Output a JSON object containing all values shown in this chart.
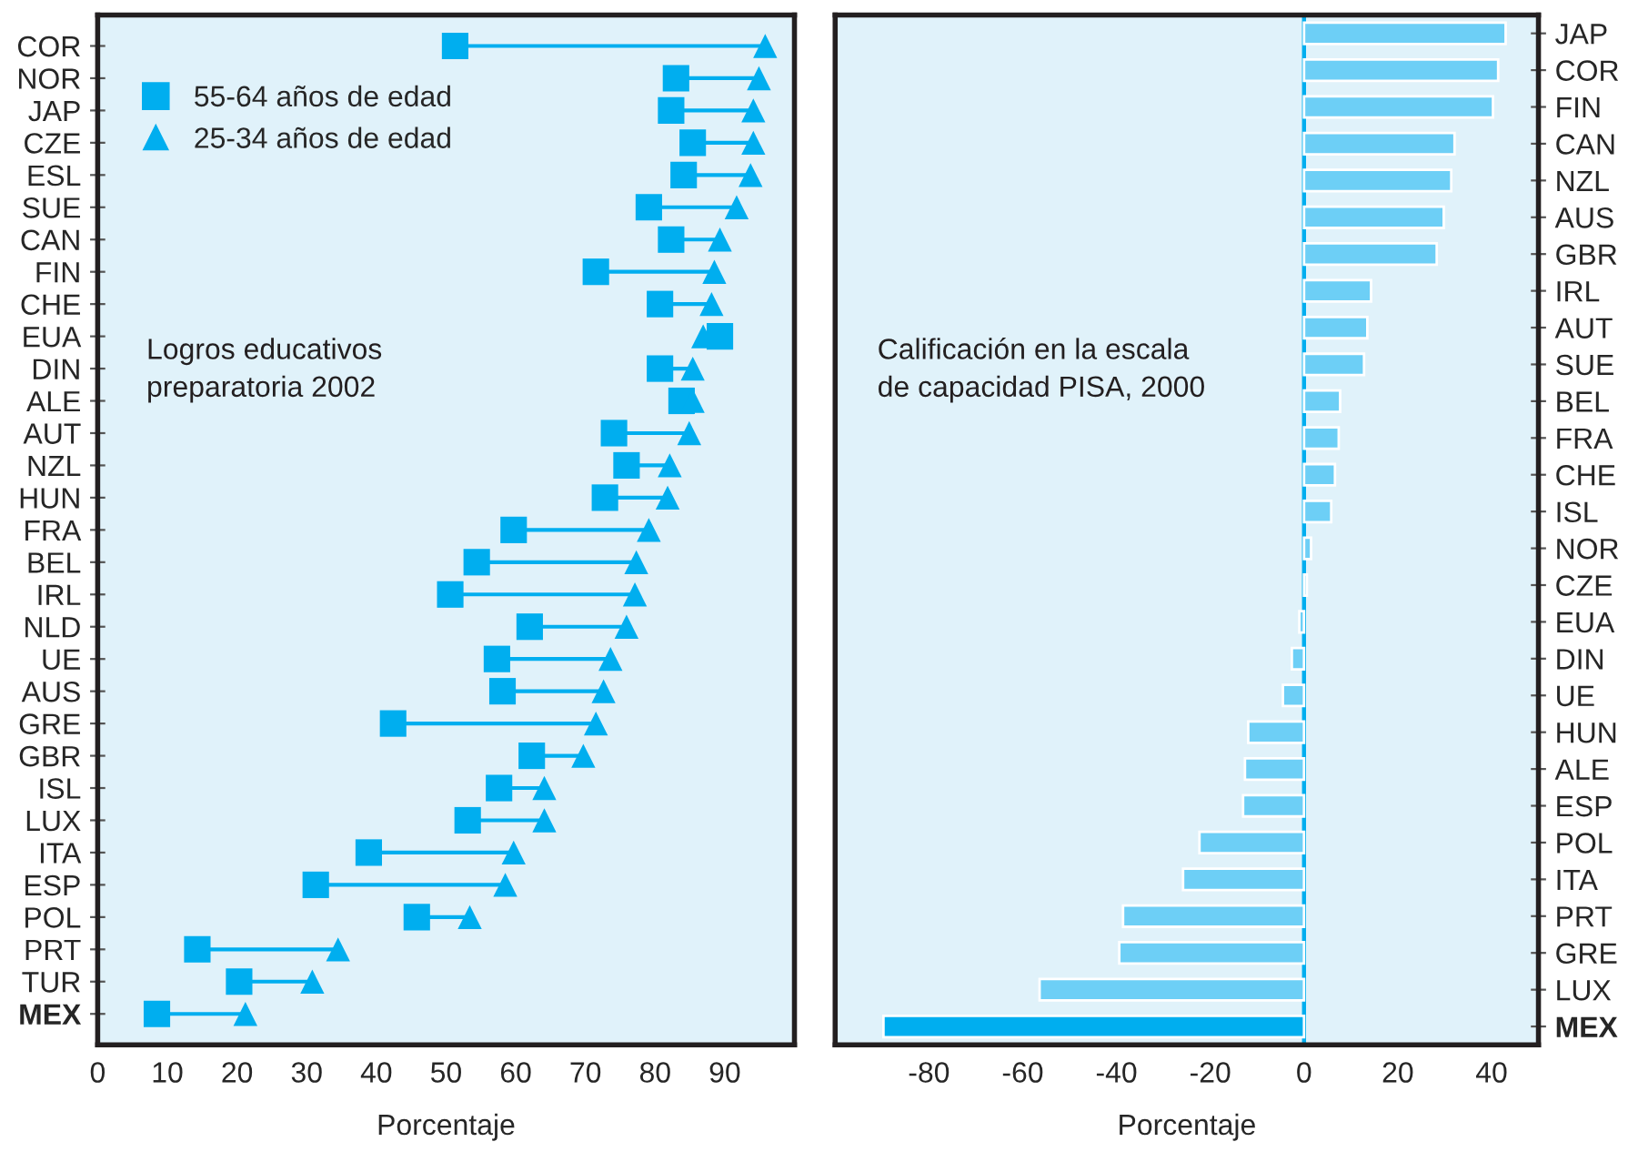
{
  "chart_data": [
    {
      "type": "scatter",
      "orientation": "horizontal",
      "legend": "top left",
      "grid": false,
      "categories": [
        "COR",
        "NOR",
        "JAP",
        "CZE",
        "ESL",
        "SUE",
        "CAN",
        "FIN",
        "CHE",
        "EUA",
        "DIN",
        "ALE",
        "AUT",
        "NZL",
        "HUN",
        "FRA",
        "BEL",
        "IRL",
        "NLD",
        "UE",
        "AUS",
        "GRE",
        "GBR",
        "ISL",
        "LUX",
        "ITA",
        "ESP",
        "POL",
        "PRT",
        "TUR",
        "MEX"
      ],
      "series": [
        {
          "name": "55-64 años de edad",
          "color": "#00aeef",
          "marker": "square",
          "values": [
            51.3,
            83,
            82.3,
            85.4,
            84.1,
            79.1,
            82.3,
            71.5,
            80.7,
            89.3,
            80.7,
            83.8,
            74.1,
            75.9,
            72.8,
            59.7,
            54.4,
            50.6,
            62,
            57.3,
            58.1,
            42.4,
            62.3,
            57.6,
            53.1,
            38.9,
            31.3,
            45.8,
            14.3,
            20.3,
            8.5
          ]
        },
        {
          "name": "25-34 años de edad",
          "color": "#00aeef",
          "marker": "triangle",
          "values": [
            95.8,
            94.9,
            94.1,
            94.1,
            93.7,
            91.7,
            89.3,
            88.5,
            88.1,
            86.9,
            85.4,
            85.4,
            84.9,
            82.1,
            81.8,
            79.1,
            77.3,
            77.1,
            75.9,
            73.6,
            72.6,
            71.5,
            69.7,
            64.1,
            64.1,
            59.7,
            58.5,
            53.4,
            34.5,
            30.8,
            21.2
          ]
        }
      ],
      "xlabel": "Porcentaje",
      "xlim": [
        0,
        100
      ],
      "xticks": [
        0,
        10,
        20,
        30,
        40,
        50,
        60,
        70,
        80,
        90
      ],
      "annotations": [
        "Logros educativos\npreparatoria 2002"
      ]
    },
    {
      "type": "bar",
      "orientation": "horizontal",
      "grid": false,
      "categories": [
        "JAP",
        "COR",
        "FIN",
        "CAN",
        "NZL",
        "AUS",
        "GBR",
        "IRL",
        "AUT",
        "SUE",
        "BEL",
        "FRA",
        "CHE",
        "ISL",
        "NOR",
        "CZE",
        "EUA",
        "DIN",
        "UE",
        "HUN",
        "ALE",
        "ESP",
        "POL",
        "ITA",
        "PRT",
        "GRE",
        "LUX",
        "MEX"
      ],
      "values": [
        43.0,
        41.4,
        40.3,
        32.1,
        31.4,
        29.8,
        28.3,
        14.3,
        13.5,
        12.8,
        7.7,
        7.4,
        6.6,
        5.8,
        1.5,
        0.6,
        -1.0,
        -2.6,
        -4.5,
        -11.9,
        -12.6,
        -13.0,
        -22.3,
        -25.8,
        -38.6,
        -39.4,
        -56.4,
        -89.7
      ],
      "colors": [
        "#6dcff6",
        "#6dcff6",
        "#6dcff6",
        "#6dcff6",
        "#6dcff6",
        "#6dcff6",
        "#6dcff6",
        "#6dcff6",
        "#6dcff6",
        "#6dcff6",
        "#6dcff6",
        "#6dcff6",
        "#6dcff6",
        "#6dcff6",
        "#6dcff6",
        "#6dcff6",
        "#6dcff6",
        "#6dcff6",
        "#6dcff6",
        "#6dcff6",
        "#6dcff6",
        "#6dcff6",
        "#6dcff6",
        "#6dcff6",
        "#6dcff6",
        "#6dcff6",
        "#6dcff6",
        "#00aeef"
      ],
      "ref_lines": [
        {
          "axis": "x",
          "value": 0,
          "color": "#00aeef"
        }
      ],
      "xlabel": "Porcentaje",
      "xlim": [
        -100,
        50
      ],
      "xticks": [
        -80,
        -60,
        -40,
        -20,
        0,
        20,
        40
      ],
      "annotations": [
        "Calificación en la escala\nde capacidad PISA, 2000"
      ]
    }
  ]
}
